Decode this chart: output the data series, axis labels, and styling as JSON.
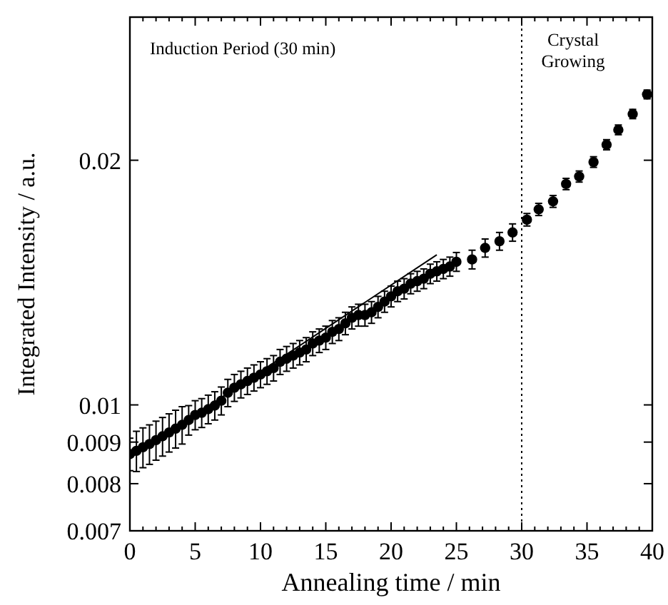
{
  "chart_data": {
    "type": "scatter",
    "xlabel": "Annealing time / min",
    "ylabel": "Integrated Intensity / a.u.",
    "log": "y",
    "xlim": [
      0,
      40
    ],
    "ylim": [
      0.007,
      0.03
    ],
    "xticks": [
      0,
      {
        "value": 1,
        "label": null
      },
      {
        "value": 2,
        "label": null
      },
      {
        "value": 3,
        "label": null
      },
      {
        "value": 4,
        "label": null
      },
      5,
      {
        "value": 6,
        "label": null
      },
      {
        "value": 7,
        "label": null
      },
      {
        "value": 8,
        "label": null
      },
      {
        "value": 9,
        "label": null
      },
      10,
      {
        "value": 11,
        "label": null
      },
      {
        "value": 12,
        "label": null
      },
      {
        "value": 13,
        "label": null
      },
      {
        "value": 14,
        "label": null
      },
      15,
      {
        "value": 16,
        "label": null
      },
      {
        "value": 17,
        "label": null
      },
      {
        "value": 18,
        "label": null
      },
      {
        "value": 19,
        "label": null
      },
      20,
      {
        "value": 21,
        "label": null
      },
      {
        "value": 22,
        "label": null
      },
      {
        "value": 23,
        "label": null
      },
      {
        "value": 24,
        "label": null
      },
      25,
      {
        "value": 26,
        "label": null
      },
      {
        "value": 27,
        "label": null
      },
      {
        "value": 28,
        "label": null
      },
      {
        "value": 29,
        "label": null
      },
      30,
      {
        "value": 31,
        "label": null
      },
      {
        "value": 32,
        "label": null
      },
      {
        "value": 33,
        "label": null
      },
      {
        "value": 34,
        "label": null
      },
      35,
      {
        "value": 36,
        "label": null
      },
      {
        "value": 37,
        "label": null
      },
      {
        "value": 38,
        "label": null
      },
      {
        "value": 39,
        "label": null
      },
      40
    ],
    "yticks": [
      0.007,
      0.008,
      0.009,
      0.01,
      0.02
    ],
    "grid": false,
    "marker": "circle",
    "series": [
      {
        "color": "#000000",
        "x": [
          0,
          0.5,
          1,
          1.5,
          2,
          2.5,
          3,
          3.5,
          4,
          4.5,
          5,
          5.5,
          6,
          6.5,
          7,
          7.5,
          8,
          8.5,
          9,
          9.5,
          10,
          10.5,
          11,
          11.5,
          12,
          12.5,
          13,
          13.5,
          14,
          14.5,
          15,
          15.5,
          16,
          16.5,
          17,
          17.5,
          18,
          18.5,
          19,
          19.5,
          20,
          20.5,
          21,
          21.5,
          22,
          22.5,
          23,
          23.5,
          24,
          24.5,
          25,
          26.2,
          27.2,
          28.3,
          29.3,
          30.4,
          31.3,
          32.4,
          33.4,
          34.4,
          35.5,
          36.5,
          37.4,
          38.5,
          39.6
        ],
        "values": [
          0.0087,
          0.00878,
          0.00887,
          0.00895,
          0.00905,
          0.00915,
          0.00925,
          0.00935,
          0.00945,
          0.00958,
          0.00972,
          0.00978,
          0.00988,
          0.00998,
          0.01012,
          0.01035,
          0.0105,
          0.0106,
          0.0107,
          0.0108,
          0.0109,
          0.011,
          0.0111,
          0.0113,
          0.0114,
          0.0115,
          0.0116,
          0.0117,
          0.0119,
          0.012,
          0.0121,
          0.0123,
          0.0124,
          0.0126,
          0.0128,
          0.0129,
          0.0129,
          0.013,
          0.0132,
          0.0134,
          0.0136,
          0.0138,
          0.0139,
          0.0141,
          0.0142,
          0.0143,
          0.0145,
          0.0146,
          0.0147,
          0.0148,
          0.015,
          0.0151,
          0.0156,
          0.0159,
          0.0163,
          0.0169,
          0.0174,
          0.0178,
          0.0187,
          0.0191,
          0.0199,
          0.0209,
          0.0218,
          0.0228,
          0.0241
        ],
        "errors": [
          0.0004,
          0.0005,
          0.0005,
          0.0005,
          0.0005,
          0.0005,
          0.0005,
          0.0005,
          0.0005,
          0.0004,
          0.0004,
          0.0004,
          0.0004,
          0.0004,
          0.0004,
          0.0004,
          0.0004,
          0.0004,
          0.0004,
          0.0004,
          0.0004,
          0.0004,
          0.0004,
          0.0004,
          0.0004,
          0.0004,
          0.0004,
          0.0004,
          0.0004,
          0.0004,
          0.0004,
          0.0004,
          0.0004,
          0.0004,
          0.0004,
          0.0004,
          0.0004,
          0.0004,
          0.0004,
          0.0004,
          0.0004,
          0.0004,
          0.0004,
          0.0004,
          0.0004,
          0.0004,
          0.0004,
          0.0004,
          0.0004,
          0.0004,
          0.0004,
          0.0004,
          0.0004,
          0.0004,
          0.0004,
          0.0003,
          0.0003,
          0.0003,
          0.0003,
          0.0003,
          0.0003,
          0.0003,
          0.0003,
          0.0003,
          0.0003
        ]
      },
      {
        "type": "line",
        "color": "#000000",
        "marker": "none",
        "line_style": "solid",
        "x": [
          0,
          23.5
        ],
        "values": [
          0.0086,
          0.0153
        ]
      }
    ],
    "ref_lines": [
      {
        "axis": "x",
        "value": 30,
        "line_style": "dotted",
        "color": "#000000"
      }
    ],
    "annotations": [
      "Induction Period (30 min)",
      "Crystal Growing"
    ]
  }
}
